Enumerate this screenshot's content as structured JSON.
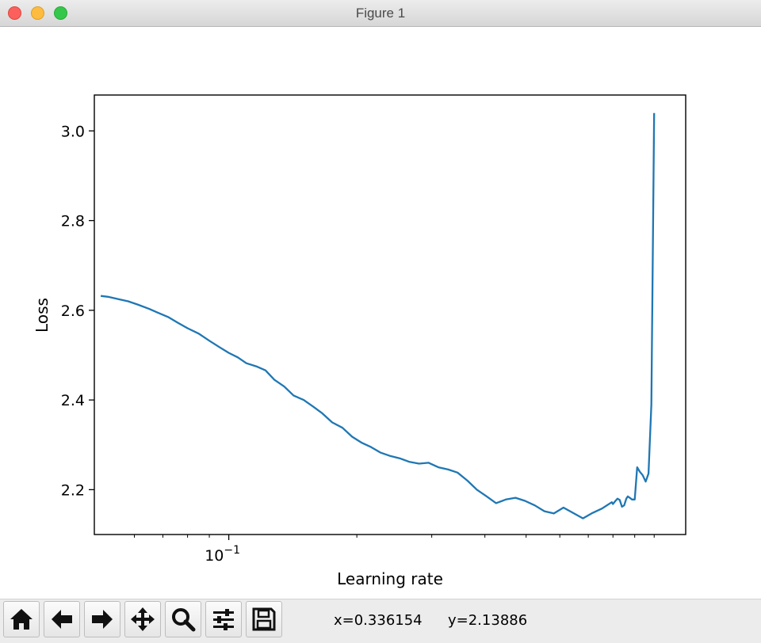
{
  "window": {
    "title": "Figure 1"
  },
  "toolbar": {
    "buttons": [
      {
        "name": "home-button",
        "icon": "home-icon"
      },
      {
        "name": "back-button",
        "icon": "arrow-left-icon"
      },
      {
        "name": "forward-button",
        "icon": "arrow-right-icon"
      },
      {
        "name": "pan-button",
        "icon": "move-icon"
      },
      {
        "name": "zoom-button",
        "icon": "magnifier-icon"
      },
      {
        "name": "subplots-button",
        "icon": "sliders-icon"
      },
      {
        "name": "save-button",
        "icon": "floppy-disk-icon"
      }
    ],
    "coord_x": "x=0.336154",
    "coord_y": "y=2.13886"
  },
  "chart_data": {
    "type": "line",
    "xlabel": "Learning rate",
    "ylabel": "Loss",
    "xscale": "log",
    "xlim": [
      0.0483,
      1.186
    ],
    "ylim": [
      2.1,
      3.08
    ],
    "grid": false,
    "line_color": "#1f77b4",
    "yticks": [
      2.2,
      2.4,
      2.6,
      2.8,
      3.0
    ],
    "ytick_labels": [
      "2.2",
      "2.4",
      "2.6",
      "2.8",
      "3.0"
    ],
    "xticks_major": [
      0.1
    ],
    "xtick_major_labels": [
      "10^{−1}"
    ],
    "xticks_minor": [
      0.06,
      0.07,
      0.08,
      0.09,
      0.2,
      0.3,
      0.4,
      0.5,
      0.6,
      0.7,
      0.8,
      0.9,
      1.0
    ],
    "series": [
      {
        "x": [
          0.05,
          0.052,
          0.055,
          0.058,
          0.061,
          0.065,
          0.068,
          0.072,
          0.076,
          0.08,
          0.085,
          0.09,
          0.095,
          0.1,
          0.105,
          0.11,
          0.116,
          0.122,
          0.128,
          0.135,
          0.142,
          0.15,
          0.158,
          0.166,
          0.175,
          0.185,
          0.195,
          0.205,
          0.216,
          0.227,
          0.24,
          0.252,
          0.266,
          0.28,
          0.295,
          0.311,
          0.328,
          0.345,
          0.364,
          0.383,
          0.404,
          0.425,
          0.448,
          0.472,
          0.497,
          0.524,
          0.552,
          0.581,
          0.612,
          0.645,
          0.68,
          0.716,
          0.754,
          0.795,
          0.8,
          0.811,
          0.82,
          0.83,
          0.84,
          0.85,
          0.86,
          0.867,
          0.876,
          0.887,
          0.9,
          0.912,
          0.925,
          0.94,
          0.955,
          0.97,
          0.985,
          1.0
        ],
        "y": [
          2.632,
          2.63,
          2.625,
          2.62,
          2.613,
          2.603,
          2.595,
          2.585,
          2.572,
          2.56,
          2.548,
          2.532,
          2.518,
          2.505,
          2.495,
          2.482,
          2.475,
          2.466,
          2.445,
          2.43,
          2.41,
          2.4,
          2.385,
          2.37,
          2.35,
          2.338,
          2.318,
          2.305,
          2.295,
          2.283,
          2.275,
          2.27,
          2.262,
          2.258,
          2.26,
          2.25,
          2.245,
          2.238,
          2.22,
          2.2,
          2.185,
          2.17,
          2.178,
          2.182,
          2.175,
          2.165,
          2.152,
          2.147,
          2.16,
          2.148,
          2.136,
          2.148,
          2.158,
          2.172,
          2.168,
          2.175,
          2.18,
          2.177,
          2.162,
          2.165,
          2.18,
          2.185,
          2.182,
          2.178,
          2.178,
          2.25,
          2.24,
          2.232,
          2.218,
          2.236,
          2.39,
          3.04
        ]
      }
    ]
  }
}
